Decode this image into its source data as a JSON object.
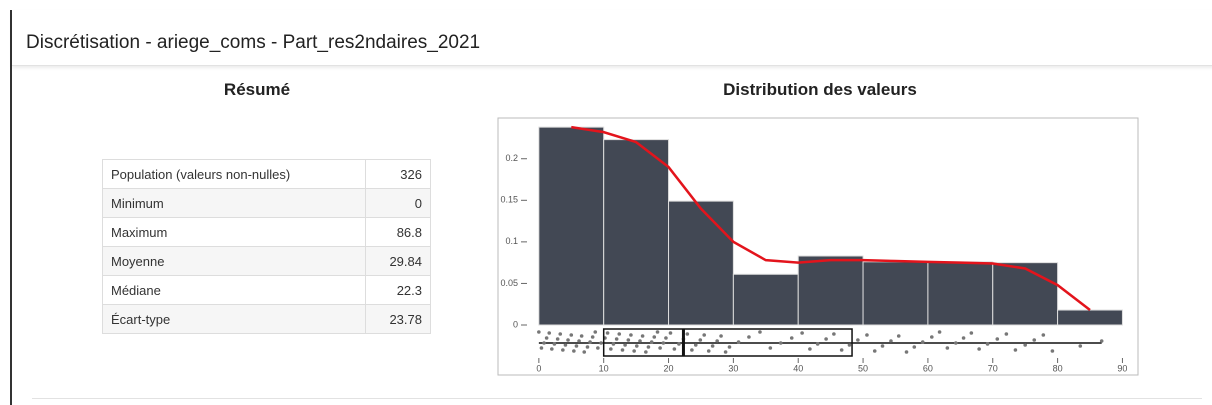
{
  "header": {
    "title": "Discrétisation  - ariege_coms  - Part_res2ndaires_2021"
  },
  "summary": {
    "title": "Résumé",
    "rows": [
      [
        "Population (valeurs non-nulles)",
        326
      ],
      [
        "Minimum",
        0
      ],
      [
        "Maximum",
        86.8
      ],
      [
        "Moyenne",
        29.84
      ],
      [
        "Médiane",
        22.3
      ],
      [
        "Écart-type",
        23.78
      ]
    ]
  },
  "chart_data": {
    "type": "histogram",
    "title": "Distribution des valeurs",
    "bins": [
      0,
      10,
      20,
      30,
      40,
      50,
      60,
      70,
      80,
      90
    ],
    "values": [
      0.238,
      0.223,
      0.149,
      0.061,
      0.083,
      0.076,
      0.076,
      0.075,
      0.018
    ],
    "color": "#424854",
    "density": {
      "color": "#e3141c",
      "x": [
        5,
        10,
        15,
        20,
        25,
        30,
        35,
        40,
        45,
        50,
        55,
        60,
        65,
        70,
        75,
        80,
        85
      ],
      "values": [
        0.238,
        0.232,
        0.22,
        0.19,
        0.14,
        0.1,
        0.078,
        0.075,
        0.078,
        0.078,
        0.077,
        0.076,
        0.075,
        0.074,
        0.068,
        0.048,
        0.018
      ]
    },
    "boxplot": {
      "min": 0,
      "q1": 10,
      "median": 22.3,
      "q3": 48.3,
      "max": 86.8
    },
    "points": [
      0,
      0.4,
      0.8,
      1.2,
      1.6,
      2,
      2.4,
      2.9,
      3.3,
      3.7,
      4.1,
      4.5,
      5,
      5.4,
      5.8,
      6.2,
      6.6,
      7,
      7.5,
      7.9,
      8.3,
      8.7,
      9.1,
      9.6,
      10.2,
      10.6,
      11.1,
      11.5,
      12,
      12.4,
      12.9,
      13.3,
      13.8,
      14.2,
      14.7,
      15.1,
      15.6,
      16,
      16.5,
      16.9,
      17.4,
      17.8,
      18.3,
      18.7,
      19.2,
      19.6,
      20.3,
      20.9,
      21.6,
      22.3,
      22.9,
      23.6,
      24.2,
      24.9,
      25.5,
      26.2,
      26.8,
      27.5,
      28.1,
      28.8,
      29.4,
      30.8,
      32.4,
      34.1,
      35.7,
      37.3,
      39,
      40.6,
      41.8,
      43,
      44.3,
      45.5,
      46.7,
      47.9,
      49.2,
      50.6,
      51.8,
      53,
      54.3,
      55.5,
      56.7,
      57.9,
      59.2,
      60.6,
      61.8,
      63,
      64.3,
      65.5,
      66.7,
      67.9,
      69.2,
      70.7,
      72.1,
      73.5,
      75,
      76.4,
      77.8,
      79.2,
      83.5,
      86.8
    ],
    "xlim": [
      -6.3,
      92.4
    ],
    "xticks": [
      0,
      10,
      20,
      30,
      40,
      50,
      60,
      70,
      80,
      90
    ],
    "ylim": [
      0,
      0.249
    ],
    "yticks": [
      0,
      0.05,
      0.1,
      0.15,
      0.2
    ]
  }
}
